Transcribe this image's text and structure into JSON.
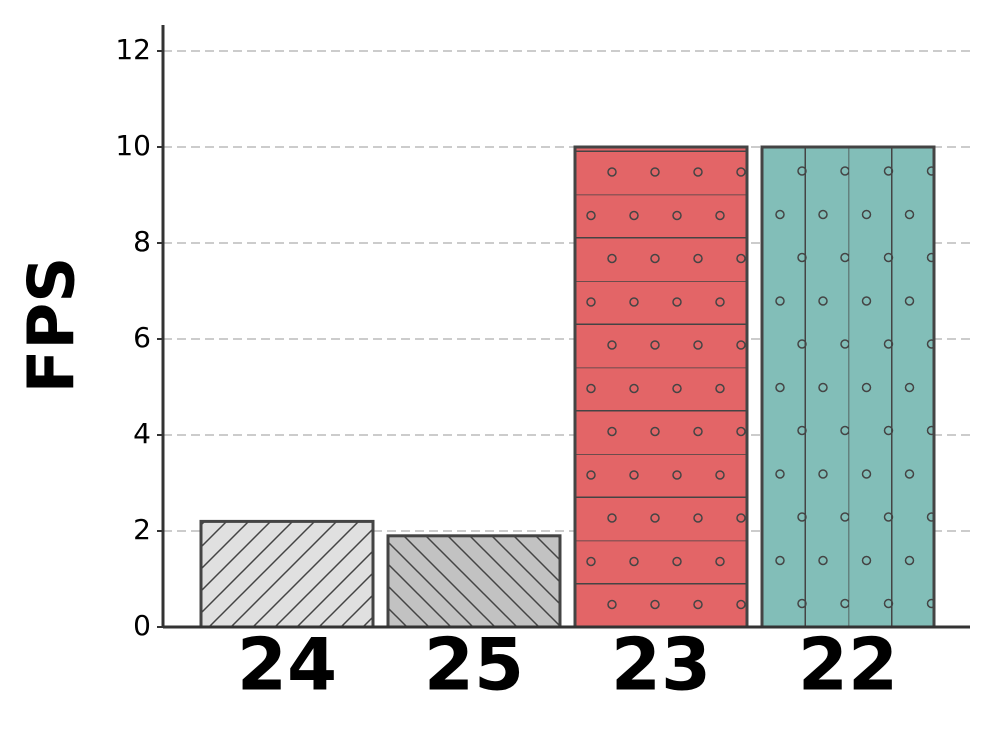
{
  "chart_data": {
    "type": "bar",
    "ylabel": "FPS",
    "categories": [
      "24",
      "25",
      "23",
      "22"
    ],
    "values": [
      2.2,
      1.9,
      10,
      10
    ],
    "colors": [
      "#e0e0e0",
      "#c2c2c2",
      "#e36567",
      "#82beb8"
    ],
    "ylim": [
      0,
      12.5
    ],
    "yticks": [
      0,
      2,
      4,
      6,
      8,
      10,
      12
    ],
    "grid": true
  }
}
